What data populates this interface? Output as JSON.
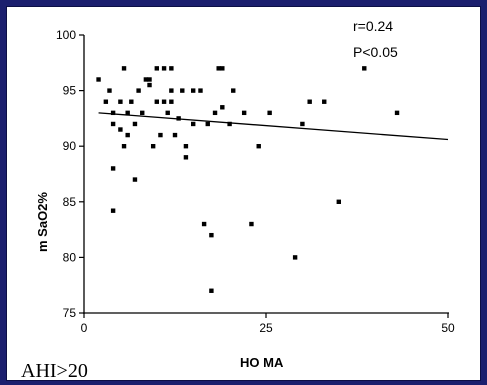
{
  "chart_data": {
    "type": "scatter",
    "xlabel": "HO MA",
    "ylabel": "m SaO2%",
    "xlim": [
      0,
      50
    ],
    "ylim": [
      75,
      100
    ],
    "x_ticks": [
      0,
      25,
      50
    ],
    "y_ticks": [
      75,
      80,
      85,
      90,
      95,
      100
    ],
    "grid": false,
    "annotations": {
      "r": "r=0.24",
      "p": "P<0.05"
    },
    "panel_label": "AHI>20",
    "trendline": {
      "x": [
        2,
        50
      ],
      "y": [
        93.0,
        90.6
      ]
    },
    "points": [
      [
        2,
        96
      ],
      [
        3,
        94
      ],
      [
        3.5,
        95
      ],
      [
        4,
        93
      ],
      [
        4,
        92
      ],
      [
        4,
        88
      ],
      [
        4,
        84.2
      ],
      [
        5,
        94
      ],
      [
        5,
        91.5
      ],
      [
        5.5,
        97
      ],
      [
        5.5,
        90
      ],
      [
        6,
        93
      ],
      [
        6,
        91
      ],
      [
        6.5,
        94
      ],
      [
        7,
        92
      ],
      [
        7,
        87
      ],
      [
        7.5,
        95
      ],
      [
        8,
        93
      ],
      [
        8.5,
        96
      ],
      [
        9,
        95.5
      ],
      [
        9,
        96
      ],
      [
        9.5,
        90
      ],
      [
        10,
        97
      ],
      [
        10,
        94
      ],
      [
        10.5,
        91
      ],
      [
        11,
        97
      ],
      [
        11,
        94
      ],
      [
        11.5,
        93
      ],
      [
        12,
        97
      ],
      [
        12,
        95
      ],
      [
        12,
        94
      ],
      [
        12.5,
        91
      ],
      [
        13,
        92.5
      ],
      [
        13.5,
        95
      ],
      [
        14,
        90
      ],
      [
        14,
        89
      ],
      [
        15,
        92
      ],
      [
        15,
        95
      ],
      [
        16,
        95
      ],
      [
        16.5,
        83
      ],
      [
        17,
        92
      ],
      [
        17.5,
        82
      ],
      [
        17.5,
        77
      ],
      [
        18,
        93
      ],
      [
        18.5,
        97
      ],
      [
        19,
        97
      ],
      [
        19,
        93.5
      ],
      [
        20,
        92
      ],
      [
        20.5,
        95
      ],
      [
        22,
        93
      ],
      [
        23,
        83
      ],
      [
        24,
        90
      ],
      [
        25.5,
        93
      ],
      [
        29,
        80
      ],
      [
        30,
        92
      ],
      [
        31,
        94
      ],
      [
        33,
        94
      ],
      [
        35,
        85
      ],
      [
        38.5,
        97
      ],
      [
        43,
        93
      ]
    ]
  }
}
